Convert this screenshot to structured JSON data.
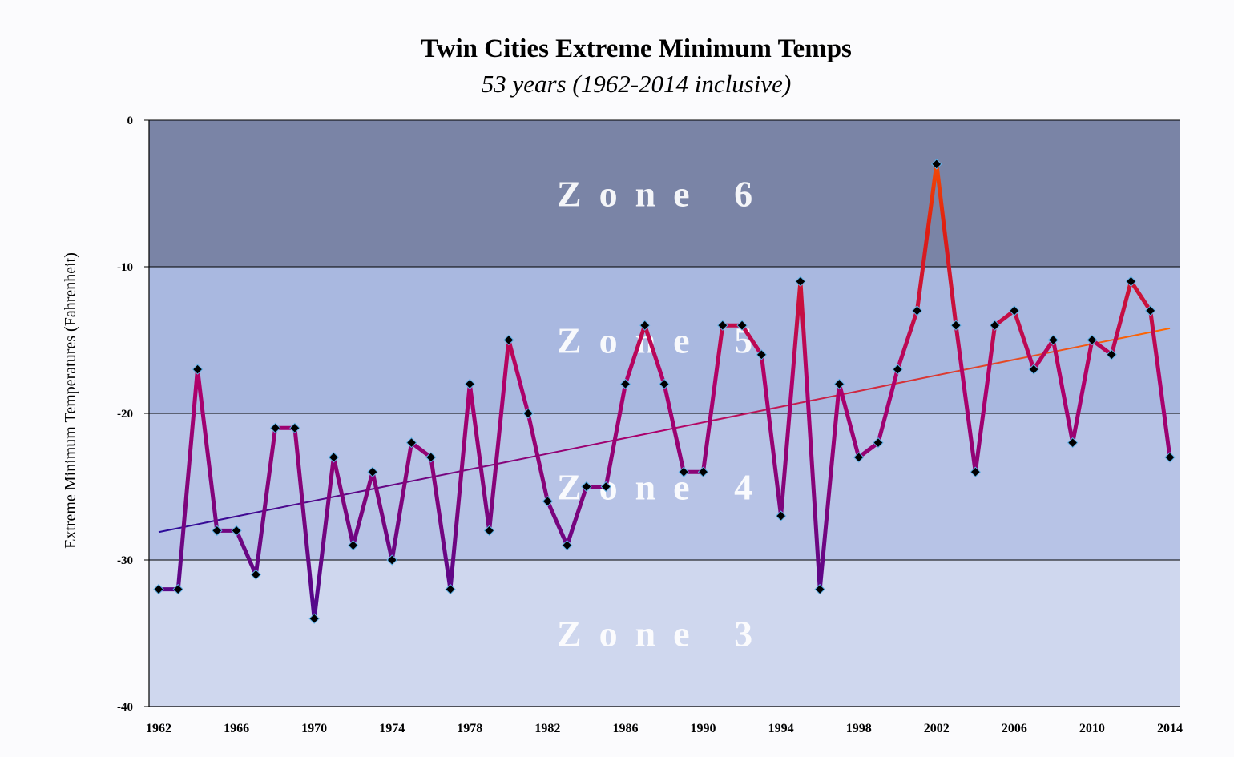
{
  "chart_data": {
    "type": "line",
    "title": "Twin Cities Extreme Minimum Temps",
    "subtitle": "53 years (1962-2014 inclusive)",
    "ylabel": "Extreme Minimum Temperatures (Fahrenheit)",
    "xlabel": "",
    "xlim": [
      1962,
      2014
    ],
    "ylim": [
      -40,
      0
    ],
    "x_ticks": [
      "1962",
      "1966",
      "1970",
      "1974",
      "1978",
      "1982",
      "1986",
      "1990",
      "1994",
      "1998",
      "2002",
      "2006",
      "2010",
      "2014"
    ],
    "y_ticks": [
      "0",
      "-10",
      "-20",
      "-30",
      "-40"
    ],
    "grid": true,
    "zones": [
      {
        "label": "Zone 6",
        "from": -10,
        "to": 0,
        "color": "#7a84a6"
      },
      {
        "label": "Zone 5",
        "from": -20,
        "to": -10,
        "color": "#a9b8e0"
      },
      {
        "label": "Zone 4",
        "from": -30,
        "to": -20,
        "color": "#b7c3e6"
      },
      {
        "label": "Zone 3",
        "from": -40,
        "to": -30,
        "color": "#cfd7ee"
      }
    ],
    "series": [
      {
        "x": [
          1962,
          1963,
          1964,
          1965,
          1966,
          1967,
          1968,
          1969,
          1970,
          1971,
          1972,
          1973,
          1974,
          1975,
          1976,
          1977,
          1978,
          1979,
          1980,
          1981,
          1982,
          1983,
          1984,
          1985,
          1986,
          1987,
          1988,
          1989,
          1990,
          1991,
          1992,
          1993,
          1994,
          1995,
          1996,
          1997,
          1998,
          1999,
          2000,
          2001,
          2002,
          2003,
          2004,
          2005,
          2006,
          2007,
          2008,
          2009,
          2010,
          2011,
          2012,
          2013,
          2014
        ],
        "values": [
          -32,
          -32,
          -17,
          -28,
          -28,
          -31,
          -21,
          -21,
          -34,
          -23,
          -29,
          -24,
          -30,
          -22,
          -23,
          -32,
          -18,
          -28,
          -15,
          -20,
          -26,
          -29,
          -25,
          -25,
          -18,
          -14,
          -18,
          -24,
          -24,
          -14,
          -14,
          -16,
          -27,
          -11,
          -32,
          -18,
          -23,
          -22,
          -17,
          -13,
          -3,
          -14,
          -24,
          -14,
          -13,
          -17,
          -15,
          -22,
          -15,
          -16,
          -11,
          -13,
          -23
        ]
      }
    ],
    "trendline": {
      "x": [
        1962,
        2014
      ],
      "values": [
        -28.1,
        -14.2
      ]
    },
    "colors": {
      "cold": "#2a0b9a",
      "mid": "#b0006a",
      "warm": "#e02010",
      "hot": "#ff6a00",
      "marker": "#000000",
      "marker_edge": "#5fb0e6"
    }
  }
}
